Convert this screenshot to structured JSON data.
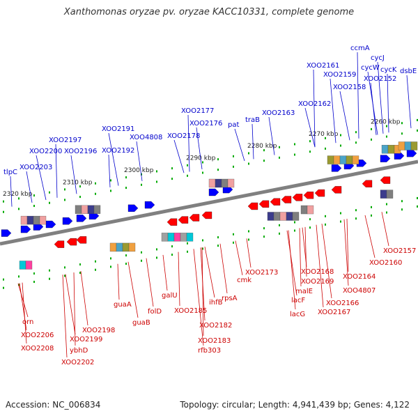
{
  "title": "Xanthomonas oryzae pv. oryzae KACC10331, complete genome",
  "accession": "Accession: NC_006834",
  "topology": "Topology: circular; Length: 4,941,439 bp; Genes: 4,122",
  "colors": {
    "axis": "#808080",
    "forward_arrow": "#0000ff",
    "reverse_arrow": "#ff0000",
    "forward_label": "#0000cc",
    "reverse_label": "#cc0000",
    "tick": "#00aa00"
  },
  "ticks": [
    "2320 kbp",
    "2310 kbp",
    "2300 kbp",
    "2290 kbp",
    "2280 kbp",
    "2270 kbp",
    "2260 kbp"
  ],
  "forward_genes": [
    "tlpC",
    "XOO2203",
    "XOO2200",
    "XOO2197",
    "XOO2196",
    "XOO2191",
    "XOO2192",
    "XOO4808",
    "XOO2178",
    "XOO2177",
    "XOO2176",
    "pat",
    "traB",
    "XOO2163",
    "XOO2162",
    "XOO2161",
    "XOO2159",
    "XOO2158",
    "ccmA",
    "cycJ",
    "cycW",
    "cycK",
    "XOO2152",
    "dsbE"
  ],
  "reverse_genes": [
    "orn",
    "XOO2206",
    "XOO2208",
    "ybhD",
    "XOO2199",
    "XOO2198",
    "XOO2202",
    "guaA",
    "guaB",
    "folD",
    "galU",
    "XOO2185",
    "ihfB",
    "rpsA",
    "XOO2182",
    "XOO2183",
    "rfb303",
    "cmk",
    "XOO2173",
    "malE",
    "lacF",
    "lacG",
    "XOO2168",
    "XOO2169",
    "XOO2166",
    "XOO2167",
    "XOO4807",
    "XOO2164",
    "XOO2160",
    "XOO2157"
  ]
}
